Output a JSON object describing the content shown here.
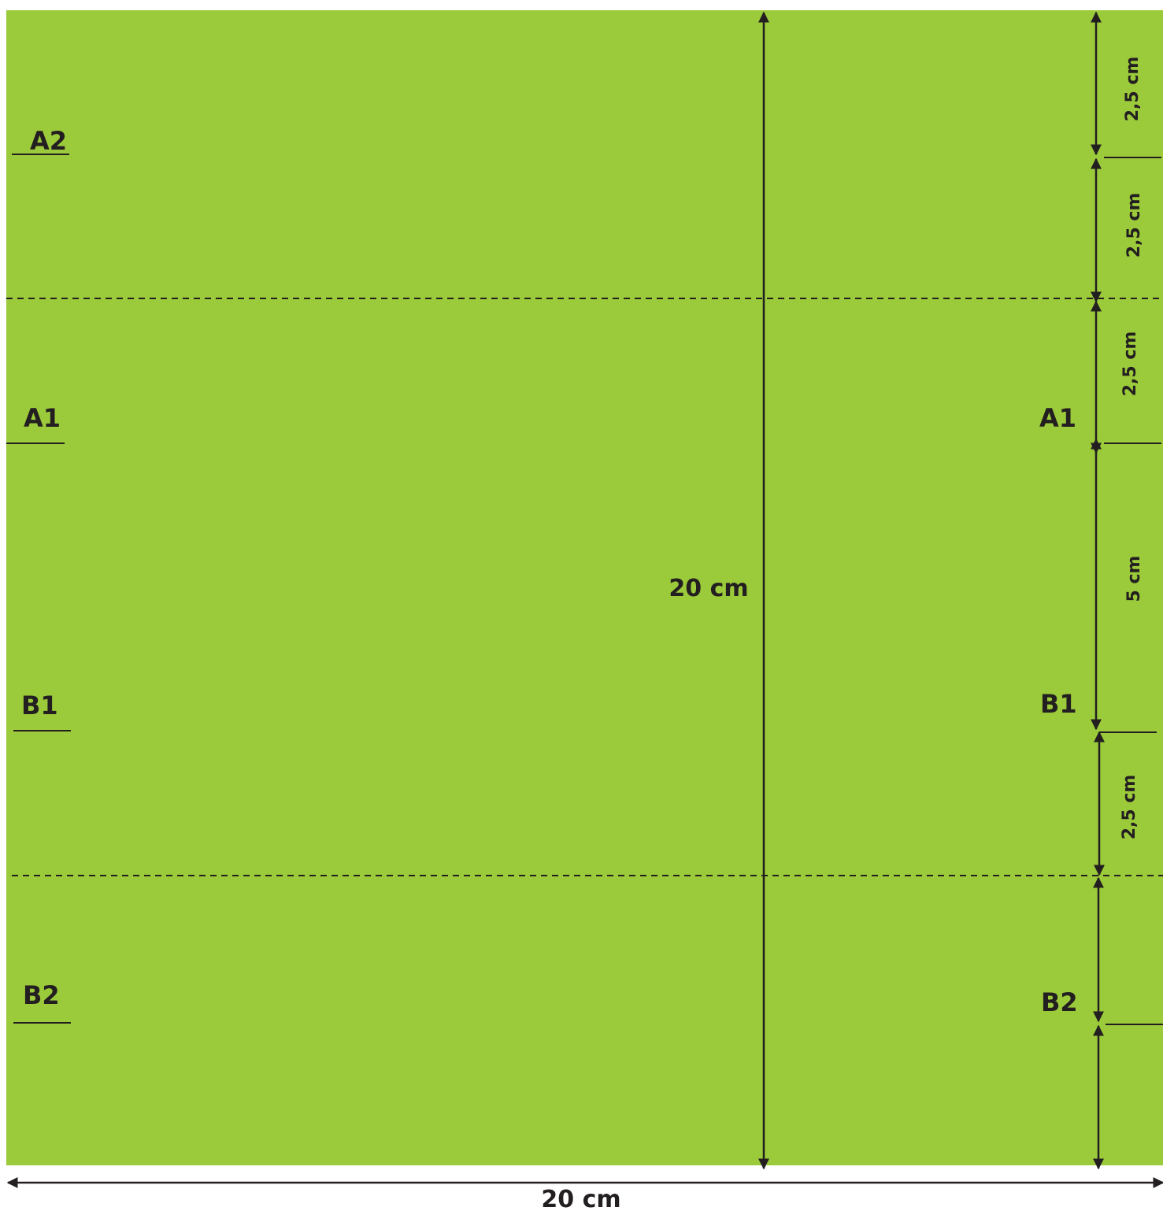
{
  "colors": {
    "sheet": "#9bca3a",
    "ink": "#231f20",
    "background": "#ffffff"
  },
  "labels": {
    "left": {
      "a2": "A2",
      "a1": "A1",
      "b1": "B1",
      "b2": "B2"
    },
    "right": {
      "a1": "A1",
      "b1": "B1",
      "b2": "B2"
    }
  },
  "dimensions": {
    "total_height": "20 cm",
    "total_width": "20 cm",
    "segments": {
      "seg1": "2,5 cm",
      "seg2": "2,5 cm",
      "seg3": "2,5 cm",
      "seg4": "5 cm",
      "seg5": "2,5 cm"
    }
  }
}
